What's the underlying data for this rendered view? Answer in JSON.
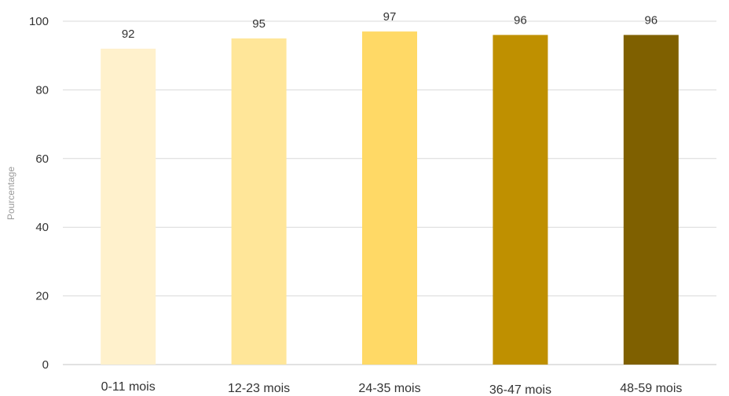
{
  "chart_data": {
    "type": "bar",
    "title": "",
    "xlabel": "",
    "ylabel": "Pourcentage",
    "categories": [
      "0-11 mois",
      "12-23 mois",
      "24-35 mois",
      "36-47 mois",
      "48-59 mois"
    ],
    "values": [
      92,
      95,
      97,
      96,
      96
    ],
    "value_labels": [
      "92",
      "95",
      "97",
      "96",
      "96"
    ],
    "ylim": [
      0,
      100
    ],
    "yticks": [
      0,
      20,
      40,
      60,
      80,
      100
    ],
    "grid": true,
    "legend": "none",
    "colors": [
      "#FFF1CC",
      "#FFE699",
      "#FFD966",
      "#BF9000",
      "#7F6000"
    ],
    "gridline_color": "#d9d9d9"
  }
}
